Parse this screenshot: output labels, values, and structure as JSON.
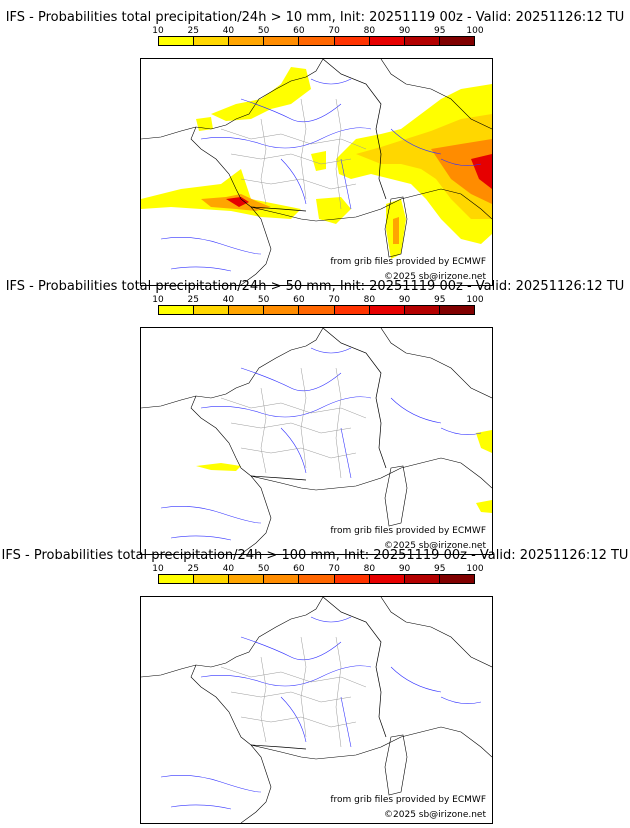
{
  "colorbar": {
    "labels": [
      "10",
      "25",
      "40",
      "50",
      "60",
      "70",
      "80",
      "90",
      "95",
      "100"
    ],
    "colors": [
      "#ffff00",
      "#ffd700",
      "#ffa500",
      "#ff8c00",
      "#ff6600",
      "#ff3300",
      "#e60000",
      "#b30000",
      "#800000"
    ]
  },
  "panels": [
    {
      "title": "IFS - Probabilities total precipitation/24h > 10 mm, Init: 20251119 00z - Valid: 20251126:12 TU",
      "source": "from grib files provided by ECMWF",
      "copyright": "©2025 sb@irizone.net"
    },
    {
      "title": "IFS - Probabilities total precipitation/24h > 50 mm, Init: 20251119 00z - Valid: 20251126:12 TU",
      "source": "from grib files provided by ECMWF",
      "copyright": "©2025 sb@irizone.net"
    },
    {
      "title": "IFS - Probabilities total precipitation/24h > 100 mm, Init: 20251119 00z - Valid: 20251126:12 TU",
      "source": "from grib files provided by ECMWF",
      "copyright": "©2025 sb@irizone.net"
    }
  ]
}
